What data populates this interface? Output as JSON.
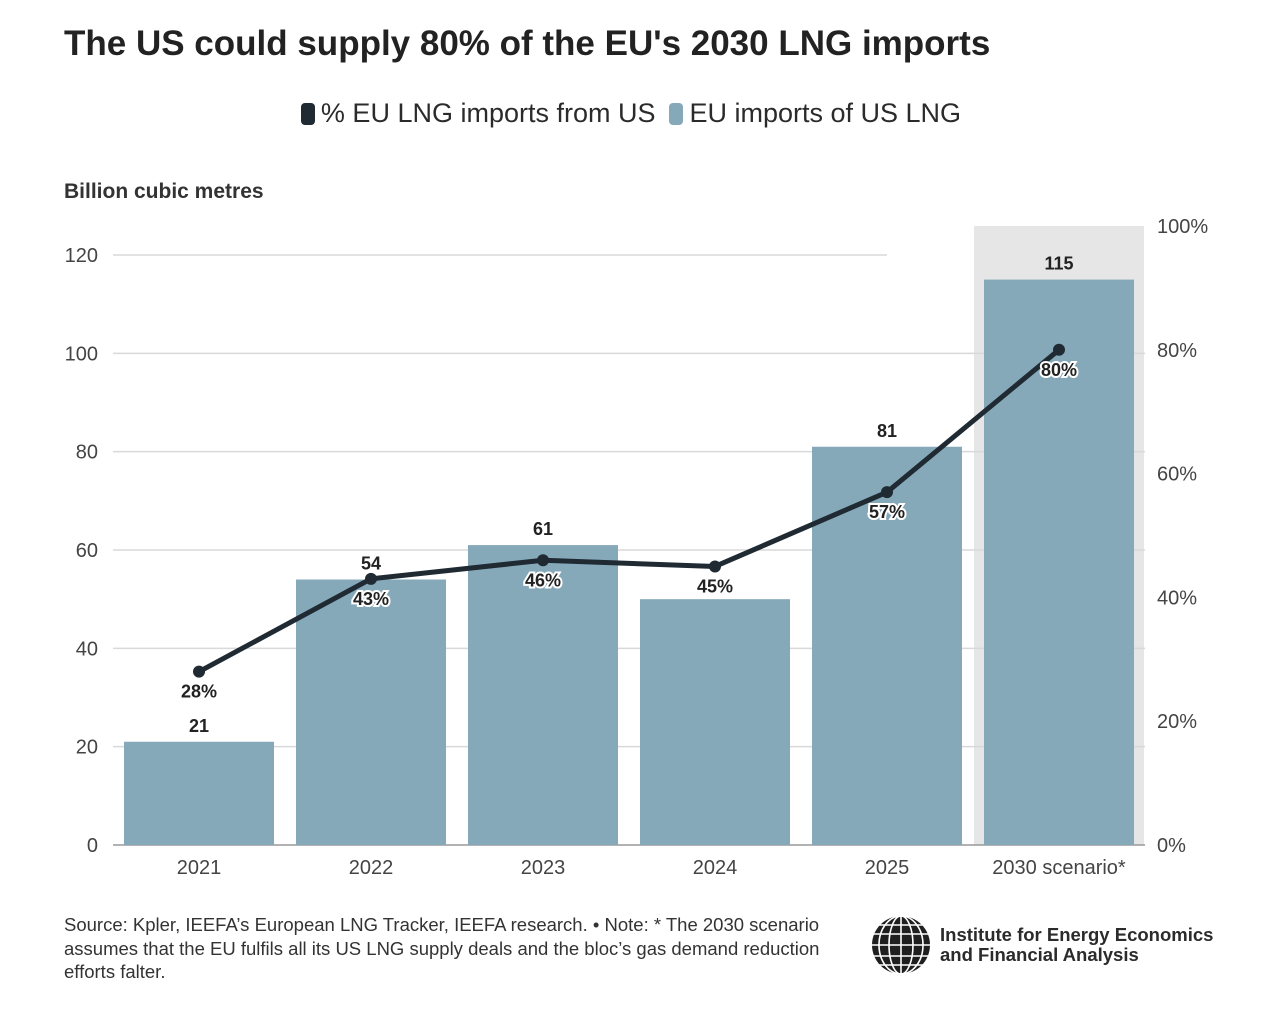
{
  "title": "The US could supply 80% of the EU's 2030 LNG imports",
  "unit_label": "Billion cubic metres",
  "legend": [
    {
      "label": "% EU LNG imports from US",
      "color": "#1f2a33"
    },
    {
      "label": "EU imports of US LNG",
      "color": "#86a9ba"
    }
  ],
  "footer": {
    "note": "Source: Kpler, IEEFA’s European LNG Tracker, IEEFA research. • Note: * The 2030 scenario assumes that the EU fulfils all its US LNG supply deals and the bloc’s gas demand reduction efforts falter."
  },
  "logo": {
    "line1": "Institute for Energy Economics",
    "line2": "and Financial Analysis"
  },
  "colors": {
    "bar": "#86a9ba",
    "line": "#1f2a33",
    "highlight_band": "#e6e6e6",
    "grid": "#d9d9d9"
  },
  "chart_data": {
    "type": "bar",
    "categories": [
      "2021",
      "2022",
      "2023",
      "2024",
      "2025",
      "2030 scenario*"
    ],
    "series": [
      {
        "name": "EU imports of US LNG",
        "type": "bar",
        "axis": "left",
        "values": [
          21,
          54,
          61,
          50,
          81,
          115
        ],
        "labels": [
          "21",
          "54",
          "61",
          "",
          "81",
          "115"
        ]
      },
      {
        "name": "% EU LNG imports from US",
        "type": "line",
        "axis": "right",
        "values": [
          28,
          43,
          46,
          45,
          57,
          80
        ],
        "labels": [
          "28%",
          "43%",
          "46%",
          "45%",
          "57%",
          "80%"
        ]
      }
    ],
    "ylabel": "Billion cubic metres",
    "ylim": [
      0,
      120
    ],
    "yticks": [
      "0",
      "20",
      "40",
      "60",
      "80",
      "100",
      "120"
    ],
    "y2lim": [
      0,
      100
    ],
    "y2ticks": [
      "0%",
      "20%",
      "40%",
      "60%",
      "80%",
      "100%"
    ],
    "highlight_category": "2030 scenario*",
    "grid": true,
    "legend_position": "top-center"
  }
}
